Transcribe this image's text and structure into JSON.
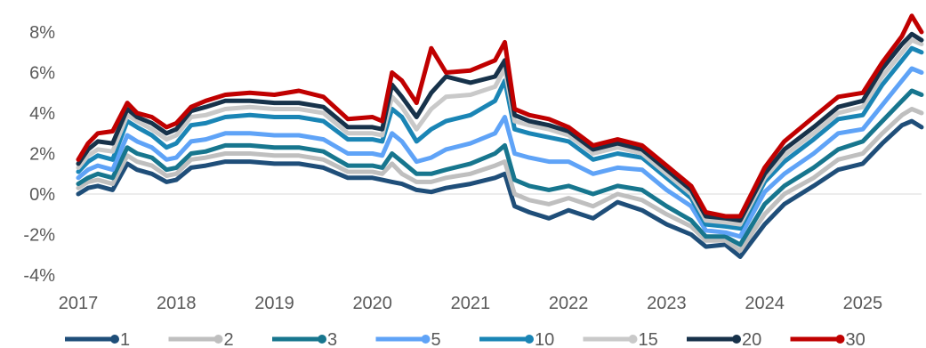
{
  "chart_data": {
    "type": "line",
    "title": "",
    "xlabel": "",
    "ylabel": "",
    "xlim": [
      2017.0,
      2025.6
    ],
    "ylim": [
      -4,
      8
    ],
    "x_ticks": [
      {
        "value": 2017,
        "label": "2017"
      },
      {
        "value": 2018,
        "label": "2018"
      },
      {
        "value": 2019,
        "label": "2019"
      },
      {
        "value": 2020,
        "label": "2020"
      },
      {
        "value": 2021,
        "label": "2021"
      },
      {
        "value": 2022,
        "label": "2022"
      },
      {
        "value": 2023,
        "label": "2023"
      },
      {
        "value": 2024,
        "label": "2024"
      },
      {
        "value": 2025,
        "label": "2025"
      }
    ],
    "y_ticks": [
      {
        "value": 8,
        "label": "8%"
      },
      {
        "value": 6,
        "label": "6%"
      },
      {
        "value": 4,
        "label": "4%"
      },
      {
        "value": 2,
        "label": "2%"
      },
      {
        "value": 0,
        "label": "0%"
      },
      {
        "value": -2,
        "label": "-2%"
      },
      {
        "value": -4,
        "label": "-4%"
      }
    ],
    "grid": false,
    "legend_position": "bottom",
    "x": [
      2017.0,
      2017.1,
      2017.2,
      2017.35,
      2017.5,
      2017.6,
      2017.75,
      2017.9,
      2018.0,
      2018.15,
      2018.3,
      2018.5,
      2018.75,
      2019.0,
      2019.25,
      2019.5,
      2019.75,
      2020.0,
      2020.1,
      2020.2,
      2020.3,
      2020.45,
      2020.6,
      2020.75,
      2021.0,
      2021.25,
      2021.35,
      2021.45,
      2021.6,
      2021.8,
      2022.0,
      2022.25,
      2022.5,
      2022.75,
      2023.0,
      2023.25,
      2023.4,
      2023.6,
      2023.75,
      2024.0,
      2024.2,
      2024.5,
      2024.75,
      2025.0,
      2025.2,
      2025.4,
      2025.5,
      2025.6
    ],
    "series": [
      {
        "name": "1",
        "color": "#1F4E79",
        "values": [
          0.0,
          0.3,
          0.4,
          0.2,
          1.5,
          1.2,
          1.0,
          0.6,
          0.7,
          1.3,
          1.4,
          1.6,
          1.6,
          1.5,
          1.5,
          1.3,
          0.8,
          0.8,
          0.7,
          0.6,
          0.5,
          0.2,
          0.1,
          0.3,
          0.5,
          0.8,
          1.0,
          -0.6,
          -0.9,
          -1.2,
          -0.8,
          -1.2,
          -0.4,
          -0.8,
          -1.5,
          -2.0,
          -2.6,
          -2.5,
          -3.1,
          -1.5,
          -0.5,
          0.4,
          1.2,
          1.5,
          2.5,
          3.4,
          3.6,
          3.3
        ]
      },
      {
        "name": "2",
        "color": "#BFBFBF",
        "values": [
          0.3,
          0.6,
          0.7,
          0.5,
          1.9,
          1.6,
          1.4,
          0.9,
          1.0,
          1.7,
          1.8,
          2.0,
          2.0,
          1.9,
          1.9,
          1.7,
          1.1,
          1.1,
          1.0,
          1.5,
          1.0,
          0.6,
          0.6,
          0.8,
          1.0,
          1.4,
          1.6,
          0.0,
          -0.3,
          -0.5,
          -0.2,
          -0.6,
          0.0,
          -0.3,
          -1.0,
          -1.6,
          -2.3,
          -2.3,
          -2.8,
          -1.0,
          0.0,
          0.8,
          1.7,
          2.0,
          3.0,
          3.9,
          4.2,
          4.0
        ]
      },
      {
        "name": "3",
        "color": "#17768E",
        "values": [
          0.5,
          0.8,
          1.0,
          0.8,
          2.3,
          2.0,
          1.8,
          1.2,
          1.3,
          2.0,
          2.1,
          2.4,
          2.4,
          2.3,
          2.3,
          2.1,
          1.4,
          1.4,
          1.3,
          2.0,
          1.6,
          1.0,
          1.0,
          1.2,
          1.5,
          2.0,
          2.4,
          0.7,
          0.4,
          0.2,
          0.4,
          0.0,
          0.4,
          0.2,
          -0.6,
          -1.3,
          -2.1,
          -2.1,
          -2.5,
          -0.5,
          0.4,
          1.3,
          2.2,
          2.6,
          3.6,
          4.6,
          5.1,
          4.9
        ]
      },
      {
        "name": "5",
        "color": "#5FA3F7",
        "values": [
          0.8,
          1.2,
          1.4,
          1.2,
          2.9,
          2.6,
          2.3,
          1.7,
          1.8,
          2.6,
          2.7,
          3.0,
          3.0,
          2.9,
          2.9,
          2.7,
          2.0,
          2.0,
          1.9,
          3.0,
          2.6,
          1.6,
          1.8,
          2.2,
          2.5,
          3.0,
          3.8,
          2.0,
          1.8,
          1.6,
          1.6,
          1.0,
          1.3,
          1.2,
          0.2,
          -0.6,
          -1.8,
          -1.9,
          -2.1,
          0.1,
          1.0,
          2.0,
          3.0,
          3.2,
          4.4,
          5.6,
          6.2,
          6.0
        ]
      },
      {
        "name": "10",
        "color": "#1A85B5",
        "values": [
          1.1,
          1.6,
          1.9,
          1.7,
          3.6,
          3.3,
          2.9,
          2.3,
          2.5,
          3.4,
          3.5,
          3.8,
          3.9,
          3.8,
          3.8,
          3.6,
          2.7,
          2.7,
          2.6,
          4.2,
          3.8,
          2.6,
          3.2,
          3.6,
          3.9,
          4.6,
          5.6,
          3.2,
          3.0,
          2.8,
          2.6,
          1.7,
          2.0,
          1.8,
          0.8,
          -0.2,
          -1.5,
          -1.6,
          -1.7,
          0.6,
          1.6,
          2.7,
          3.7,
          3.9,
          5.4,
          6.6,
          7.2,
          7.0
        ]
      },
      {
        "name": "15",
        "color": "#C9C9C9",
        "values": [
          1.3,
          1.9,
          2.2,
          2.1,
          3.9,
          3.6,
          3.2,
          2.7,
          2.9,
          3.8,
          3.9,
          4.2,
          4.3,
          4.2,
          4.2,
          4.0,
          3.0,
          3.0,
          2.9,
          4.8,
          4.3,
          3.2,
          4.2,
          4.8,
          4.9,
          5.3,
          6.2,
          3.6,
          3.4,
          3.2,
          2.9,
          2.0,
          2.3,
          2.0,
          1.0,
          0.0,
          -1.3,
          -1.4,
          -1.5,
          0.8,
          1.9,
          3.0,
          4.0,
          4.3,
          5.8,
          7.0,
          7.6,
          7.4
        ]
      },
      {
        "name": "20",
        "color": "#17324A",
        "values": [
          1.5,
          2.2,
          2.6,
          2.5,
          4.2,
          3.8,
          3.5,
          3.0,
          3.2,
          4.1,
          4.3,
          4.6,
          4.6,
          4.5,
          4.5,
          4.3,
          3.3,
          3.3,
          3.2,
          5.4,
          4.8,
          3.8,
          5.0,
          5.8,
          5.5,
          5.8,
          6.6,
          3.9,
          3.6,
          3.4,
          3.1,
          2.2,
          2.5,
          2.2,
          1.2,
          0.2,
          -1.1,
          -1.2,
          -1.3,
          1.0,
          2.2,
          3.3,
          4.3,
          4.6,
          6.2,
          7.4,
          7.9,
          7.6
        ]
      },
      {
        "name": "30",
        "color": "#C00000",
        "values": [
          1.7,
          2.5,
          3.0,
          3.1,
          4.5,
          4.0,
          3.8,
          3.3,
          3.5,
          4.3,
          4.6,
          4.9,
          5.0,
          4.9,
          5.1,
          4.8,
          3.7,
          3.8,
          3.6,
          6.0,
          5.6,
          4.5,
          7.2,
          6.0,
          6.1,
          6.6,
          7.5,
          4.2,
          3.9,
          3.7,
          3.3,
          2.4,
          2.7,
          2.4,
          1.4,
          0.4,
          -0.9,
          -1.1,
          -1.1,
          1.3,
          2.6,
          3.8,
          4.8,
          5.0,
          6.5,
          7.8,
          8.8,
          8.0
        ]
      }
    ]
  }
}
